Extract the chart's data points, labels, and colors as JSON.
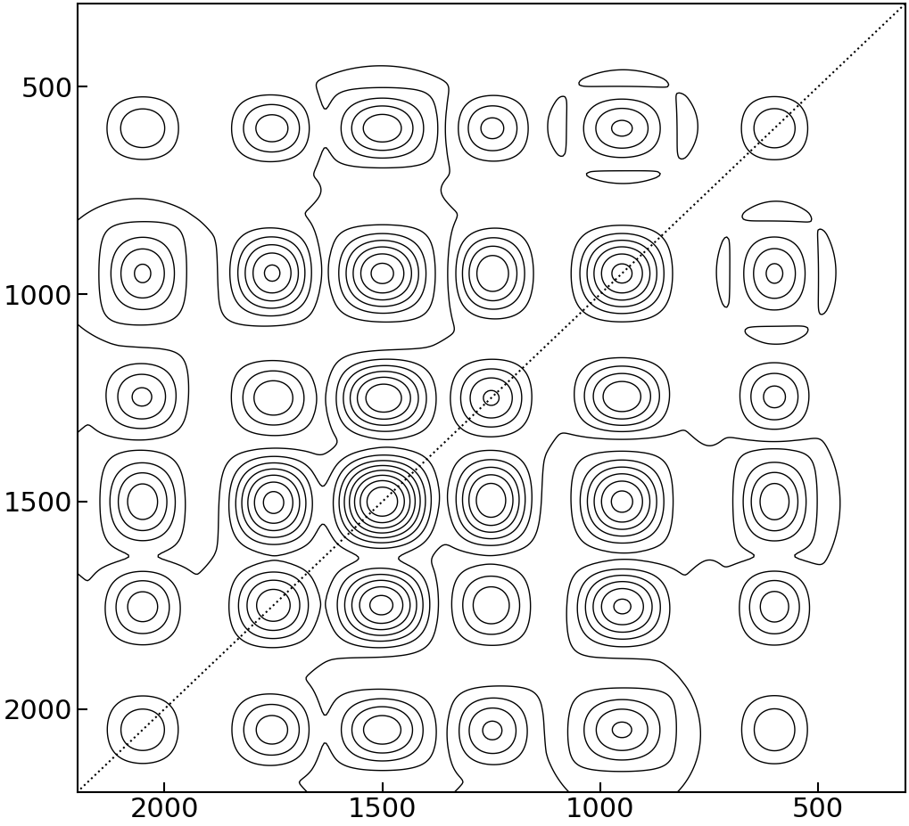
{
  "x_min": 300,
  "x_max": 2200,
  "y_min": 300,
  "y_max": 2200,
  "x_ticks": [
    500,
    1000,
    1500,
    2000
  ],
  "y_ticks": [
    500,
    1000,
    1500,
    2000
  ],
  "x_lim": [
    2200,
    300
  ],
  "y_lim": [
    2200,
    300
  ],
  "n_contours": 20,
  "contour_color": "black",
  "background_color": "white",
  "linewidth": 1.0,
  "diagonal_color": "black",
  "diagonal_style": "dotted",
  "diagonal_linewidth": 1.5,
  "figsize": [
    10.19,
    9.27
  ],
  "dpi": 100,
  "tick_fontsize": 22,
  "grid": false,
  "band_centers": [
    600,
    950,
    1250,
    1500,
    1750,
    2050
  ],
  "band_widths": [
    120,
    150,
    130,
    160,
    140,
    130
  ],
  "band_heights": [
    1.0,
    1.5,
    1.2,
    1.8,
    1.3,
    1.0
  ]
}
